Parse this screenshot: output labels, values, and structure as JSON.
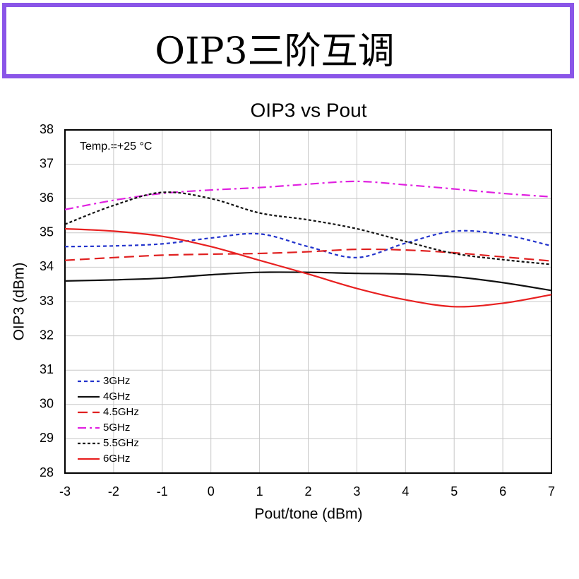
{
  "header": {
    "title": "OIP3三阶互调"
  },
  "chart_data": {
    "type": "line",
    "title": "OIP3 vs Pout",
    "annotation": "Temp.=+25 °C",
    "x_label": "Pout/tone (dBm)",
    "y_label": "OIP3 (dBm)",
    "x": [
      -3,
      -2,
      -1,
      0,
      1,
      2,
      3,
      4,
      5,
      6,
      7
    ],
    "xlim": [
      -3,
      7
    ],
    "xticks": [
      -3,
      -2,
      -1,
      0,
      1,
      2,
      3,
      4,
      5,
      6,
      7
    ],
    "ylim": [
      28,
      38
    ],
    "yticks": [
      28,
      29,
      30,
      31,
      32,
      33,
      34,
      35,
      36,
      37,
      38
    ],
    "grid": true,
    "legend": "lower left",
    "series": [
      {
        "name": "3GHz",
        "color": "#2233cc",
        "dash": "dashed",
        "values": [
          34.6,
          34.62,
          34.68,
          34.85,
          34.97,
          34.6,
          34.28,
          34.7,
          35.05,
          34.95,
          34.62
        ]
      },
      {
        "name": "4GHz",
        "color": "#111111",
        "dash": "solid",
        "values": [
          33.6,
          33.63,
          33.68,
          33.78,
          33.85,
          33.85,
          33.82,
          33.8,
          33.72,
          33.55,
          33.32
        ]
      },
      {
        "name": "4.5GHz",
        "color": "#e02020",
        "dash": "longdash",
        "values": [
          34.2,
          34.28,
          34.35,
          34.38,
          34.4,
          34.45,
          34.52,
          34.5,
          34.42,
          34.3,
          34.18
        ]
      },
      {
        "name": "5GHz",
        "color": "#e020e0",
        "dash": "dashdot",
        "values": [
          35.68,
          35.95,
          36.15,
          36.25,
          36.32,
          36.42,
          36.5,
          36.4,
          36.28,
          36.15,
          36.05
        ]
      },
      {
        "name": "5.5GHz",
        "color": "#111111",
        "dash": "dotted",
        "values": [
          35.25,
          35.8,
          36.18,
          36.0,
          35.58,
          35.38,
          35.12,
          34.75,
          34.4,
          34.22,
          34.08
        ]
      },
      {
        "name": "6GHz",
        "color": "#e82020",
        "dash": "solid",
        "values": [
          35.12,
          35.05,
          34.9,
          34.6,
          34.2,
          33.8,
          33.38,
          33.05,
          32.85,
          32.95,
          33.2
        ]
      }
    ]
  }
}
